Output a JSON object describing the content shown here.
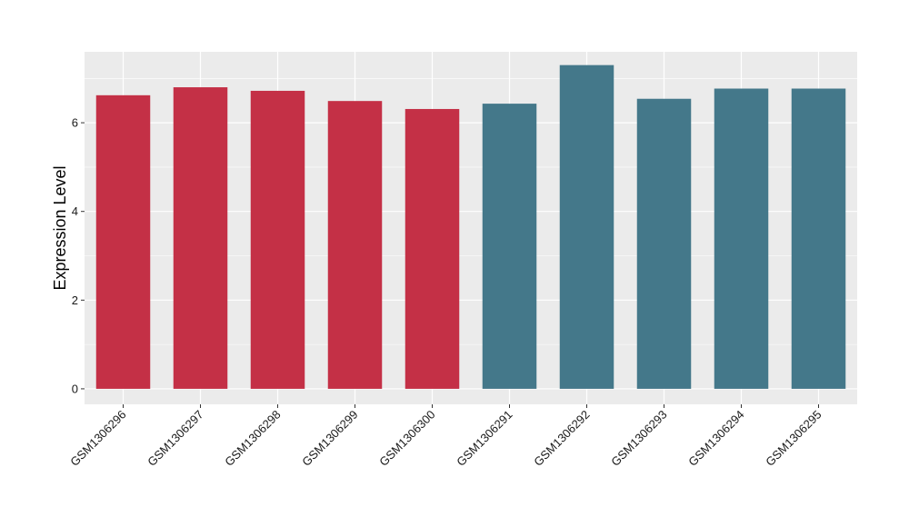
{
  "chart_data": {
    "type": "bar",
    "title": "",
    "xlabel": "",
    "ylabel": "Expression Level",
    "ylim": [
      -0.35,
      7.6
    ],
    "yticks": [
      0,
      2,
      4,
      6
    ],
    "grid": true,
    "categories": [
      "GSM1306296",
      "GSM1306297",
      "GSM1306298",
      "GSM1306299",
      "GSM1306300",
      "GSM1306291",
      "GSM1306292",
      "GSM1306293",
      "GSM1306294",
      "GSM1306295"
    ],
    "values": [
      6.62,
      6.8,
      6.72,
      6.49,
      6.31,
      6.43,
      7.3,
      6.54,
      6.77,
      6.77
    ],
    "bar_colors": [
      "#c43046",
      "#c43046",
      "#c43046",
      "#c43046",
      "#c43046",
      "#44788a",
      "#44788a",
      "#44788a",
      "#44788a",
      "#44788a"
    ],
    "panel_background": "#ebebeb",
    "grid_color": "#ffffff"
  }
}
